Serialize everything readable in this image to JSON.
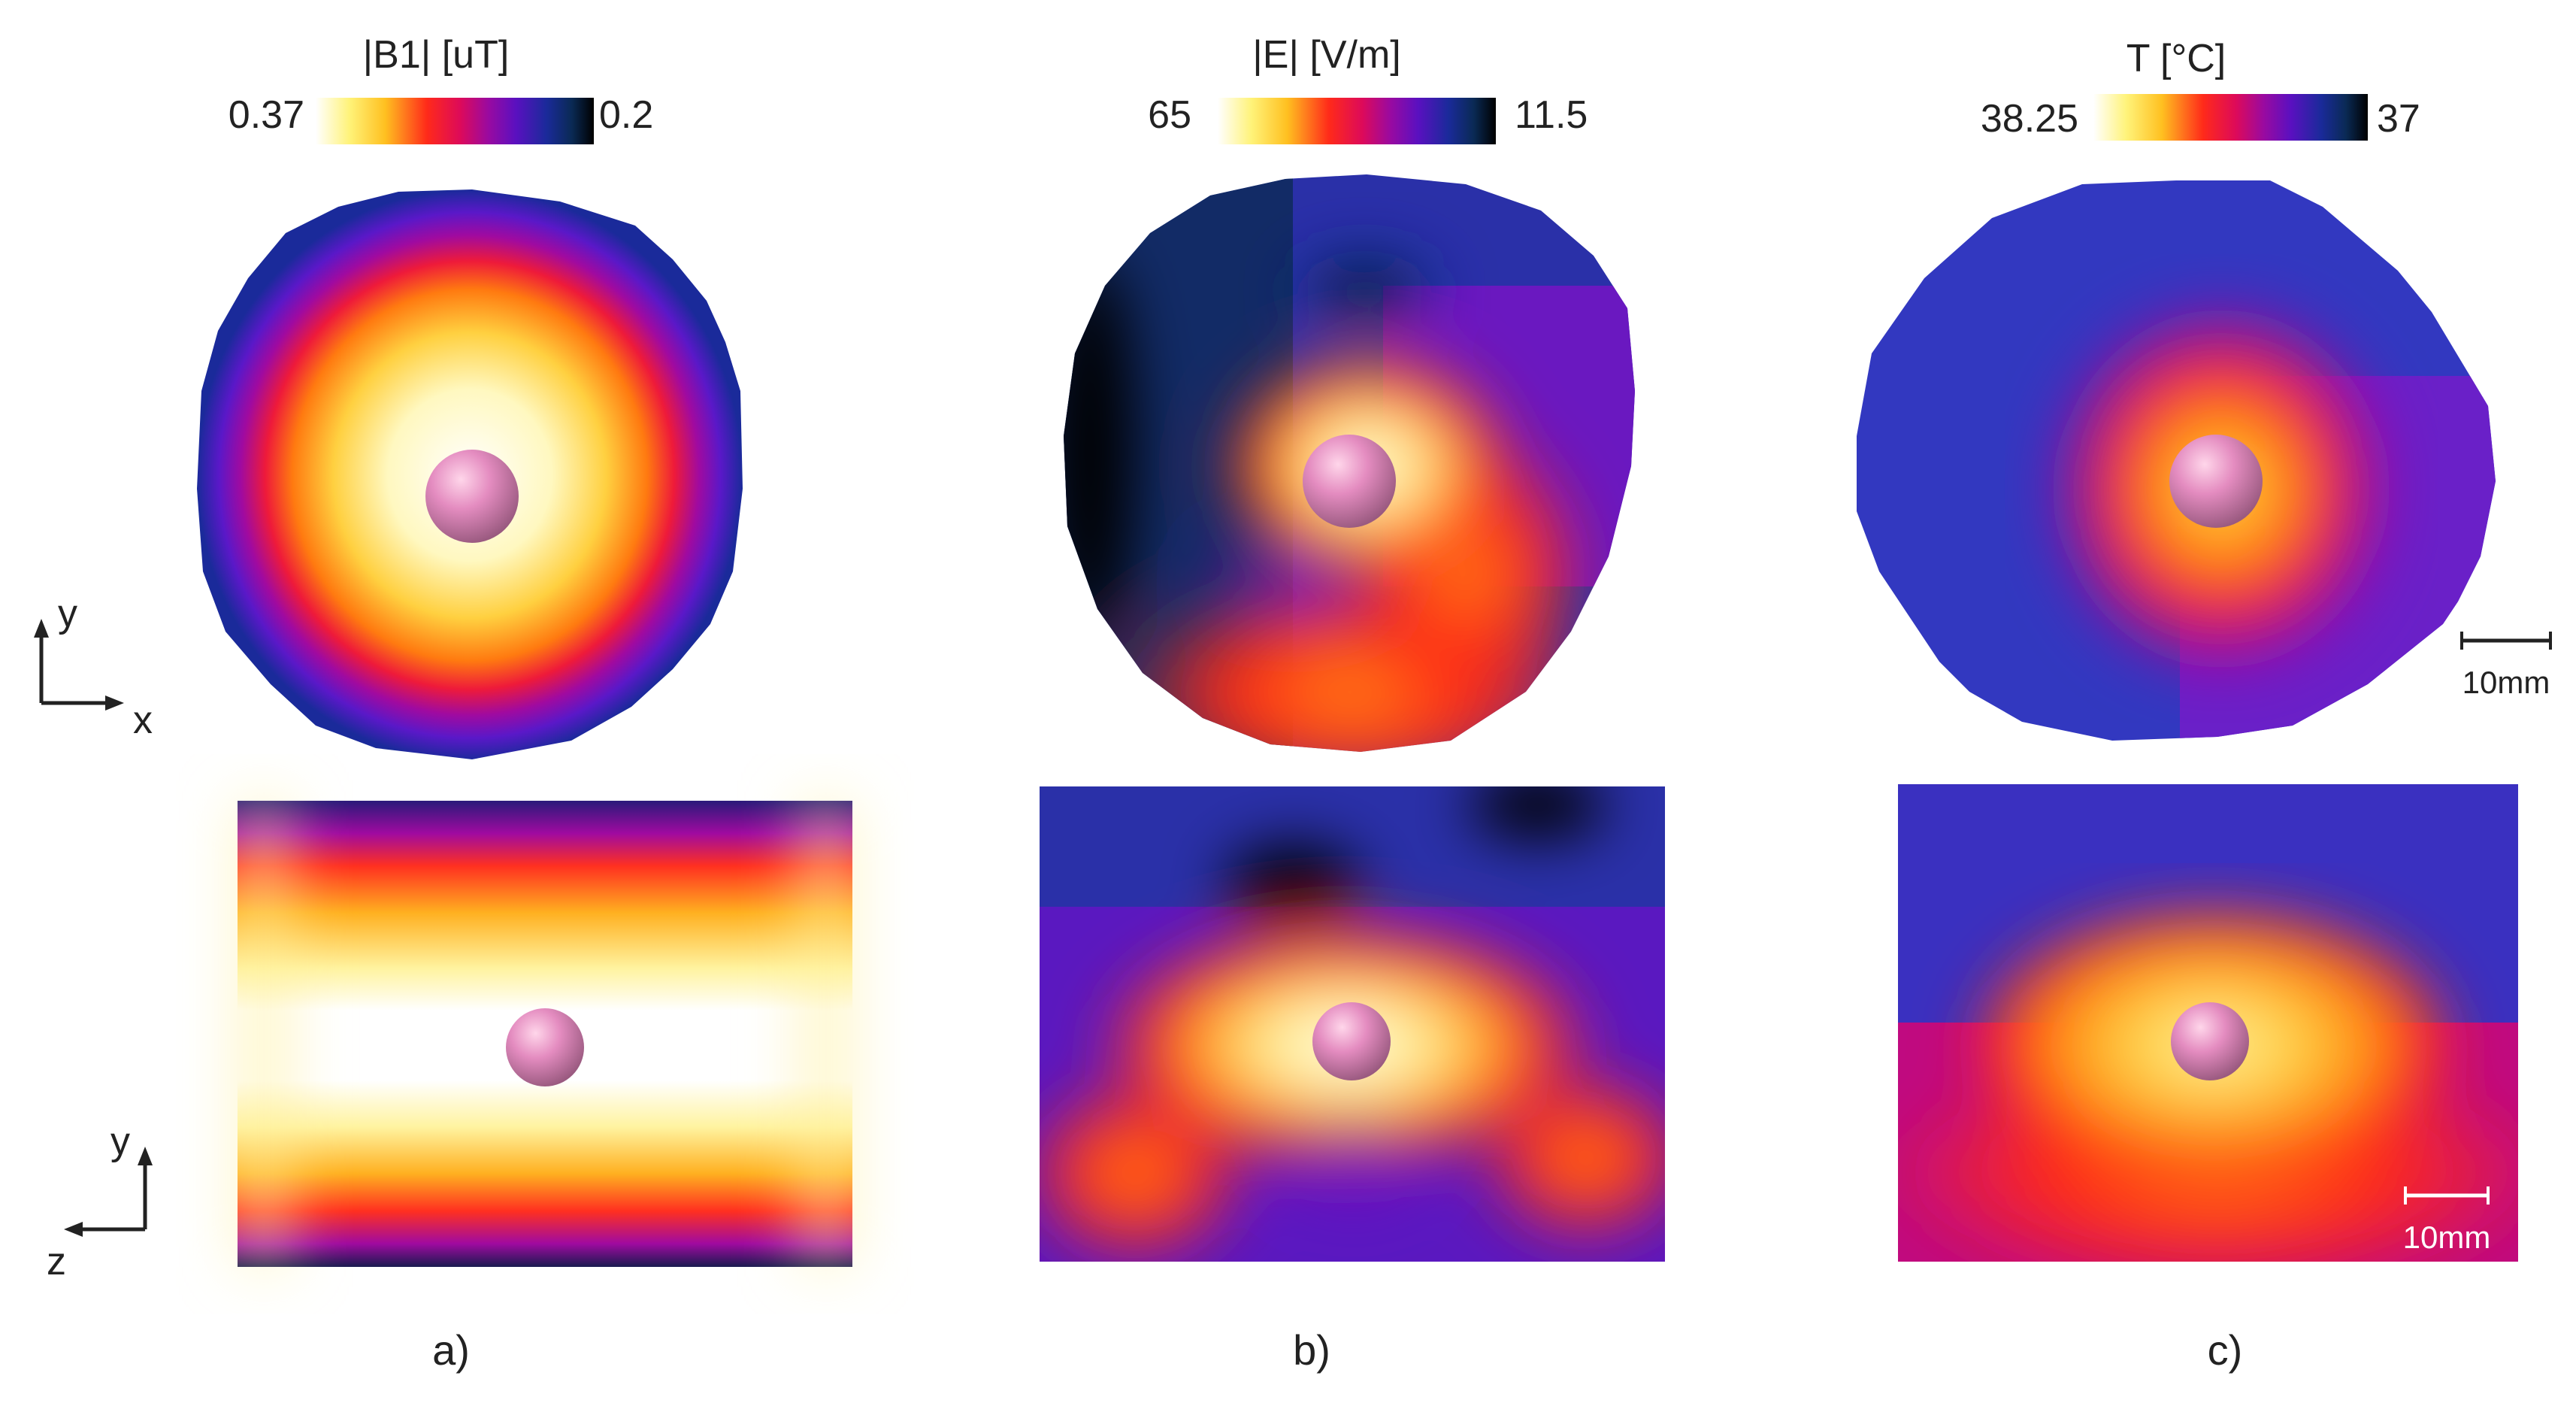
{
  "colorbars": [
    {
      "title": "|B1| [uT]",
      "max_label": "0.37",
      "min_label": "0.2"
    },
    {
      "title": "|E| [V/m]",
      "max_label": "65",
      "min_label": "11.5"
    },
    {
      "title": "T [°C]",
      "max_label": "38.25",
      "min_label": "37"
    }
  ],
  "axes": {
    "top": {
      "vertical": "y",
      "horizontal": "x"
    },
    "bottom": {
      "vertical": "y",
      "horizontal": "z"
    }
  },
  "scale_bars": {
    "top": "10mm",
    "bottom": "10mm"
  },
  "panel_labels": [
    "a)",
    "b)",
    "c)"
  ],
  "colormap": [
    "#ffffff",
    "#fff37a",
    "#ffd030",
    "#ff9a00",
    "#ff2a1a",
    "#dd0a5a",
    "#9a0aa0",
    "#5a10c0",
    "#1a2a9a",
    "#0a2a55",
    "#000000"
  ]
}
